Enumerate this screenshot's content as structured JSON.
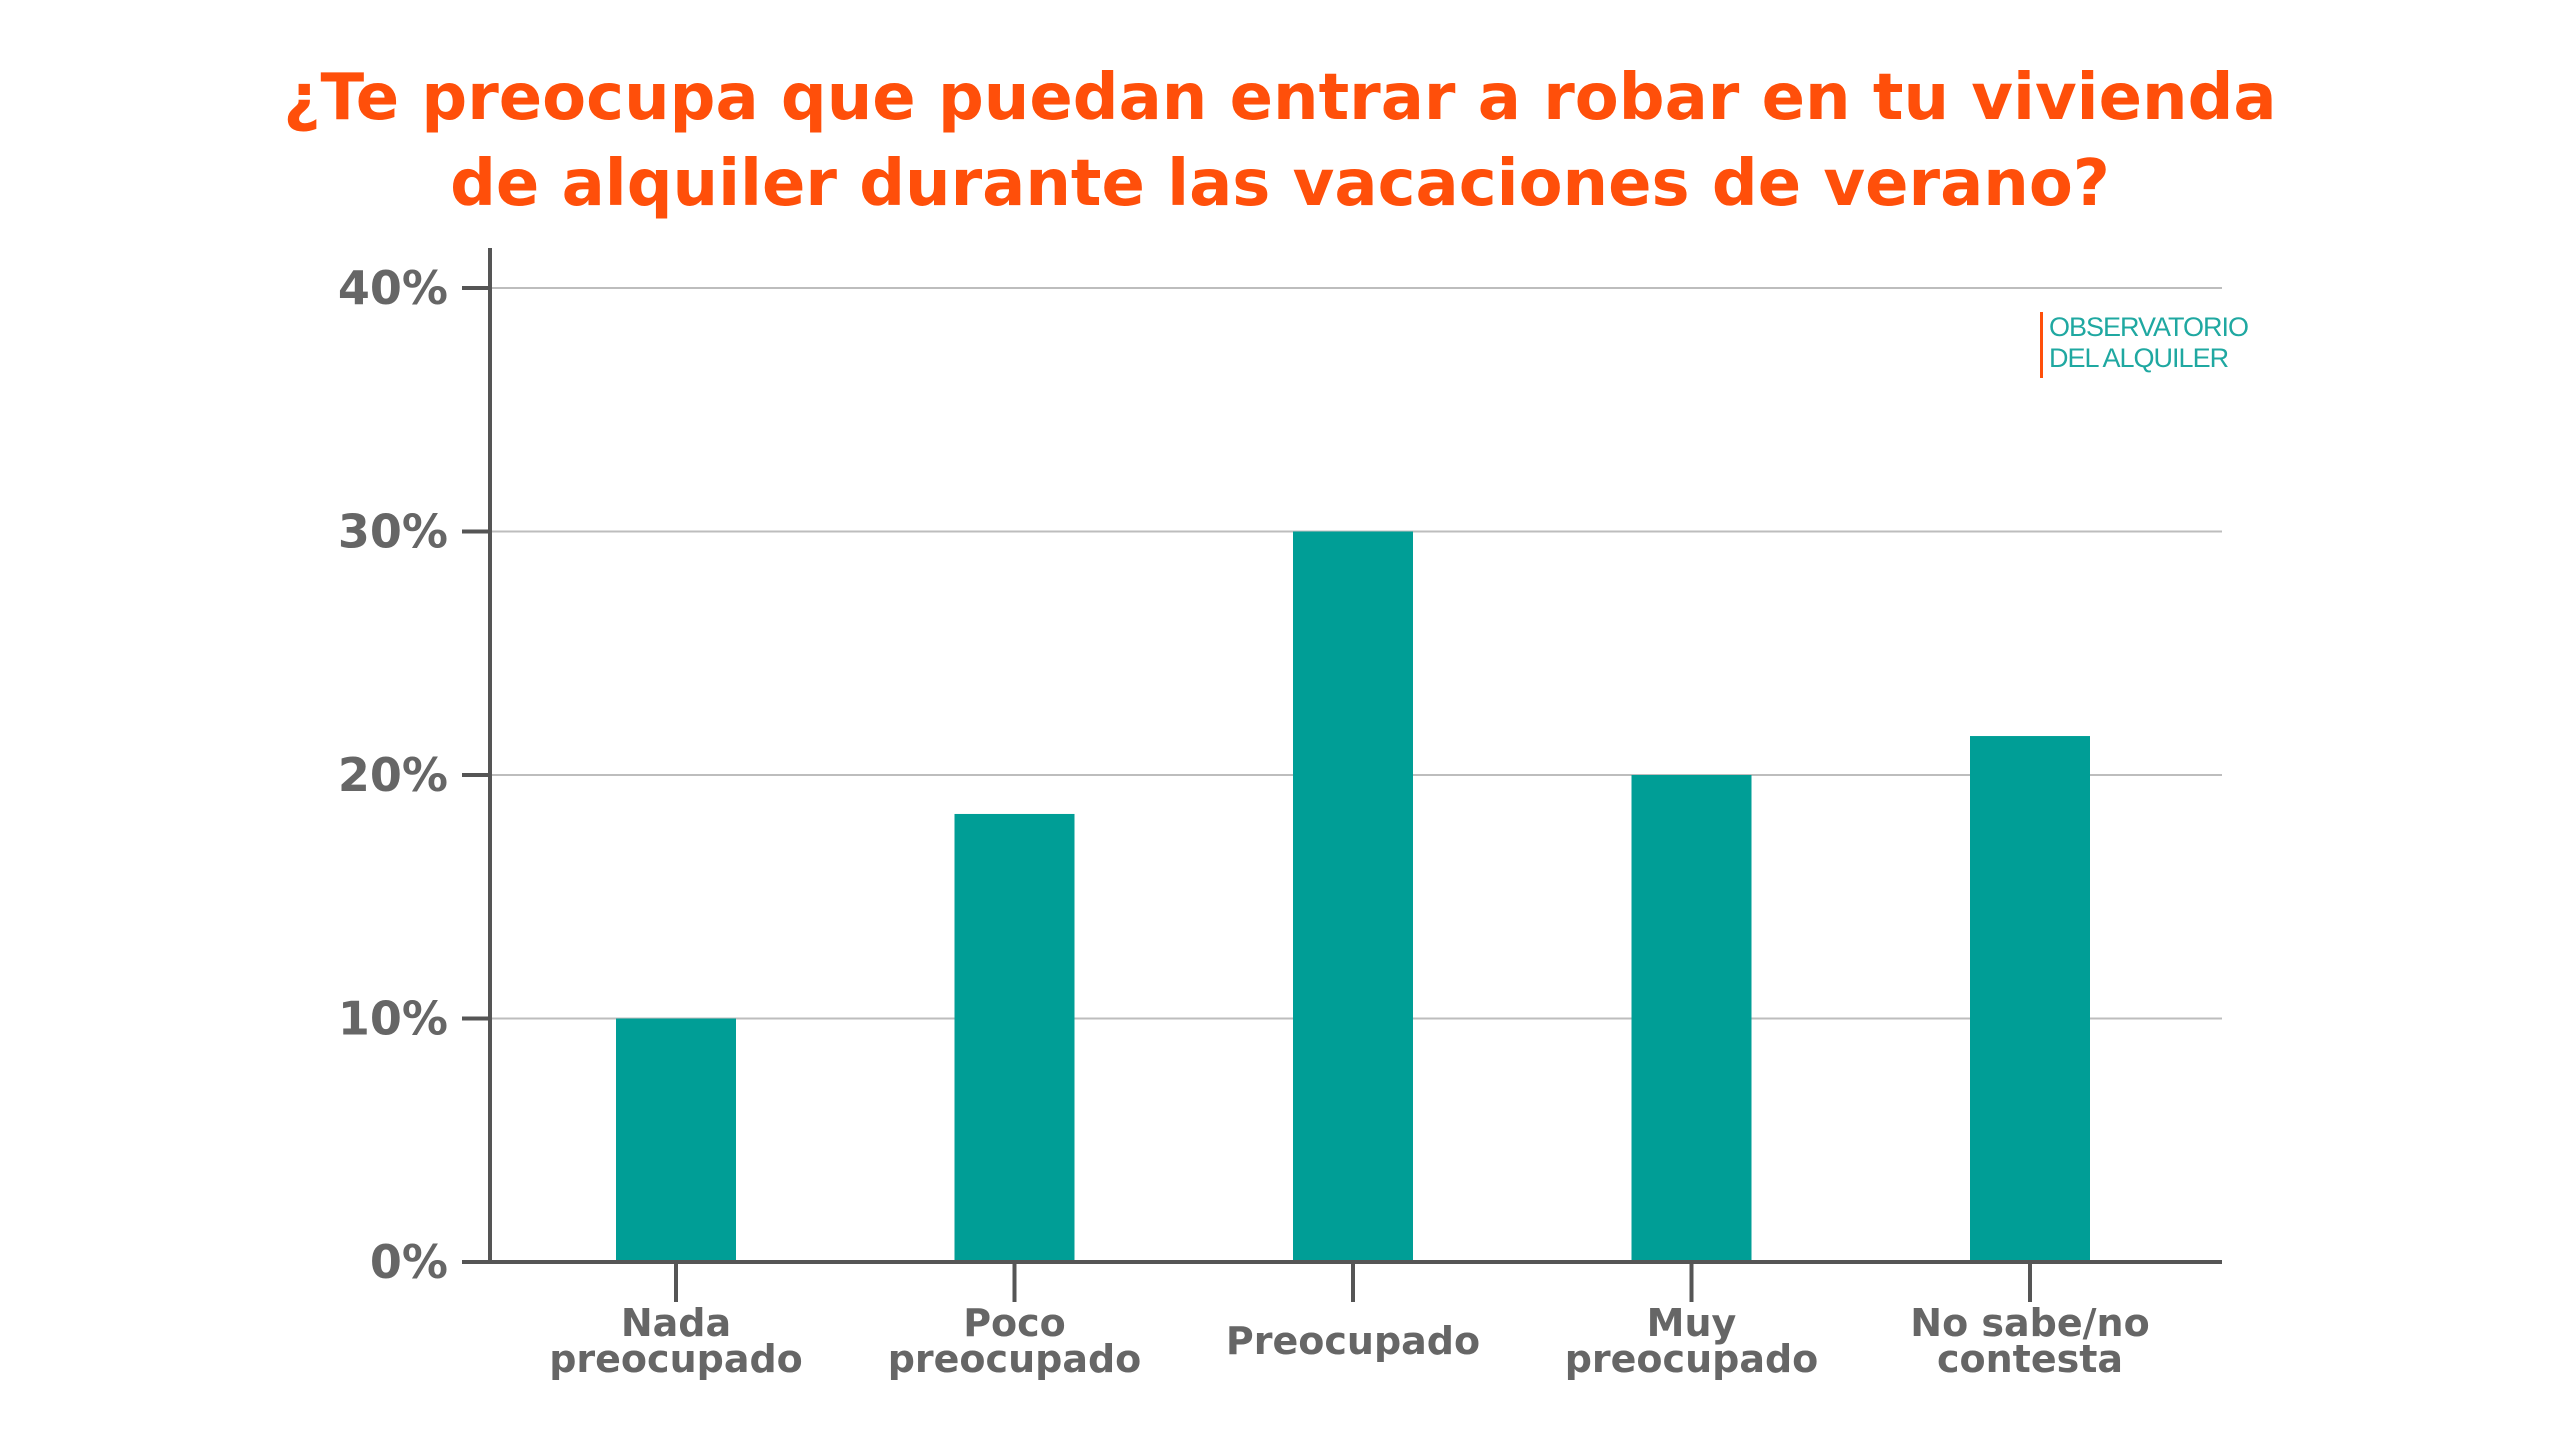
{
  "chart_data": {
    "type": "bar",
    "title": [
      "¿Te preocupa que puedan entrar a robar en tu vivienda",
      "de alquiler durante las vacaciones de verano?"
    ],
    "categories": [
      [
        "Nada",
        "preocupado"
      ],
      [
        "Poco",
        "preocupado"
      ],
      [
        "Preocupado"
      ],
      [
        "Muy",
        "preocupado"
      ],
      [
        "No sabe/no",
        "contesta"
      ]
    ],
    "values": [
      10,
      18.4,
      30,
      20,
      21.6
    ],
    "ylim": [
      0,
      40
    ],
    "yticks": [
      "0%",
      "10%",
      "20%",
      "30%",
      "40%"
    ],
    "ytick_values": [
      0,
      10,
      20,
      30,
      40
    ],
    "xlabel": "",
    "ylabel": "",
    "grid": true,
    "bar_color": "#009E96",
    "title_color": "#FF4F0A"
  },
  "logo": {
    "line1": "OBSERVATORIO",
    "line2": "DEL ALQUILER",
    "text_color": "#1FA8A1",
    "bar_color": "#FF4F0A"
  }
}
